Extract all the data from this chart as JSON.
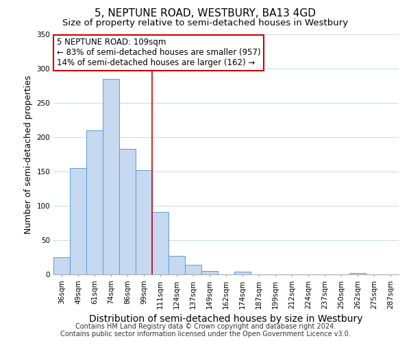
{
  "title": "5, NEPTUNE ROAD, WESTBURY, BA13 4GD",
  "subtitle": "Size of property relative to semi-detached houses in Westbury",
  "xlabel": "Distribution of semi-detached houses by size in Westbury",
  "ylabel": "Number of semi-detached properties",
  "bar_labels": [
    "36sqm",
    "49sqm",
    "61sqm",
    "74sqm",
    "86sqm",
    "99sqm",
    "111sqm",
    "124sqm",
    "137sqm",
    "149sqm",
    "162sqm",
    "174sqm",
    "187sqm",
    "199sqm",
    "212sqm",
    "224sqm",
    "237sqm",
    "250sqm",
    "262sqm",
    "275sqm",
    "287sqm"
  ],
  "bar_values": [
    25,
    155,
    210,
    285,
    183,
    152,
    91,
    27,
    14,
    5,
    0,
    4,
    0,
    0,
    0,
    0,
    0,
    0,
    2,
    0,
    0
  ],
  "bar_color": "#c6d9f0",
  "bar_edge_color": "#5b9bd5",
  "annotation_title": "5 NEPTUNE ROAD: 109sqm",
  "annotation_line1": "← 83% of semi-detached houses are smaller (957)",
  "annotation_line2": "14% of semi-detached houses are larger (162) →",
  "annotation_box_color": "#ffffff",
  "annotation_box_edge_color": "#cc0000",
  "vline_color": "#cc0000",
  "vline_x_index": 6,
  "ylim": [
    0,
    350
  ],
  "yticks": [
    0,
    50,
    100,
    150,
    200,
    250,
    300,
    350
  ],
  "footer_line1": "Contains HM Land Registry data © Crown copyright and database right 2024.",
  "footer_line2": "Contains public sector information licensed under the Open Government Licence v3.0.",
  "title_fontsize": 11,
  "subtitle_fontsize": 9.5,
  "xlabel_fontsize": 10,
  "ylabel_fontsize": 9,
  "tick_fontsize": 7.5,
  "annotation_fontsize": 8.5,
  "footer_fontsize": 7,
  "background_color": "#ffffff",
  "grid_color": "#c8dff0"
}
